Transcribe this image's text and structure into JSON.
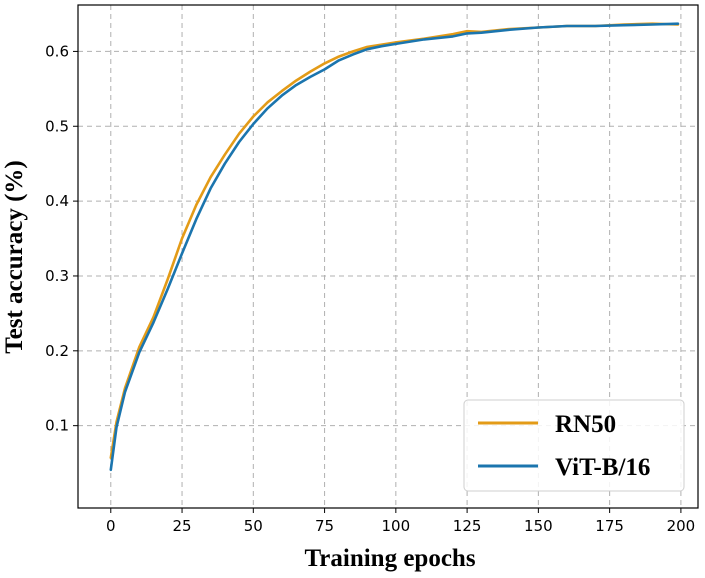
{
  "chart_data": {
    "type": "line",
    "title": "",
    "xlabel": "Training epochs",
    "ylabel": "Test accuracy (%)",
    "xlim": [
      -11.5,
      206
    ],
    "ylim": [
      -0.01,
      0.662
    ],
    "xticks": [
      0,
      25,
      50,
      75,
      100,
      125,
      150,
      175,
      200
    ],
    "yticks": [
      0.1,
      0.2,
      0.3,
      0.4,
      0.5,
      0.6
    ],
    "xtick_labels": [
      "0",
      "25",
      "50",
      "75",
      "100",
      "125",
      "150",
      "175",
      "200"
    ],
    "ytick_labels": [
      "0.1",
      "0.2",
      "0.3",
      "0.4",
      "0.5",
      "0.6"
    ],
    "grid": true,
    "legend_position": "bottom-right",
    "series": [
      {
        "name": "RN50",
        "color": "#E39B17",
        "x": [
          0,
          2,
          5,
          10,
          15,
          20,
          25,
          30,
          35,
          40,
          45,
          50,
          55,
          60,
          65,
          70,
          75,
          80,
          85,
          90,
          95,
          100,
          110,
          120,
          125,
          130,
          140,
          150,
          160,
          170,
          180,
          190,
          199
        ],
        "y": [
          0.057,
          0.105,
          0.15,
          0.205,
          0.245,
          0.296,
          0.35,
          0.395,
          0.432,
          0.462,
          0.49,
          0.513,
          0.532,
          0.547,
          0.561,
          0.573,
          0.584,
          0.593,
          0.6,
          0.606,
          0.609,
          0.612,
          0.617,
          0.623,
          0.627,
          0.626,
          0.63,
          0.632,
          0.634,
          0.634,
          0.636,
          0.637,
          0.636
        ]
      },
      {
        "name": "ViT-B/16",
        "color": "#1B75AE",
        "x": [
          0,
          2,
          5,
          10,
          15,
          20,
          25,
          30,
          35,
          40,
          45,
          50,
          55,
          60,
          65,
          70,
          75,
          80,
          85,
          90,
          95,
          100,
          110,
          120,
          125,
          130,
          140,
          150,
          160,
          170,
          180,
          190,
          199
        ],
        "y": [
          0.041,
          0.098,
          0.145,
          0.198,
          0.238,
          0.283,
          0.33,
          0.376,
          0.417,
          0.45,
          0.479,
          0.503,
          0.524,
          0.541,
          0.555,
          0.566,
          0.576,
          0.588,
          0.596,
          0.603,
          0.607,
          0.61,
          0.616,
          0.62,
          0.624,
          0.625,
          0.629,
          0.632,
          0.634,
          0.634,
          0.635,
          0.636,
          0.637
        ]
      }
    ]
  }
}
